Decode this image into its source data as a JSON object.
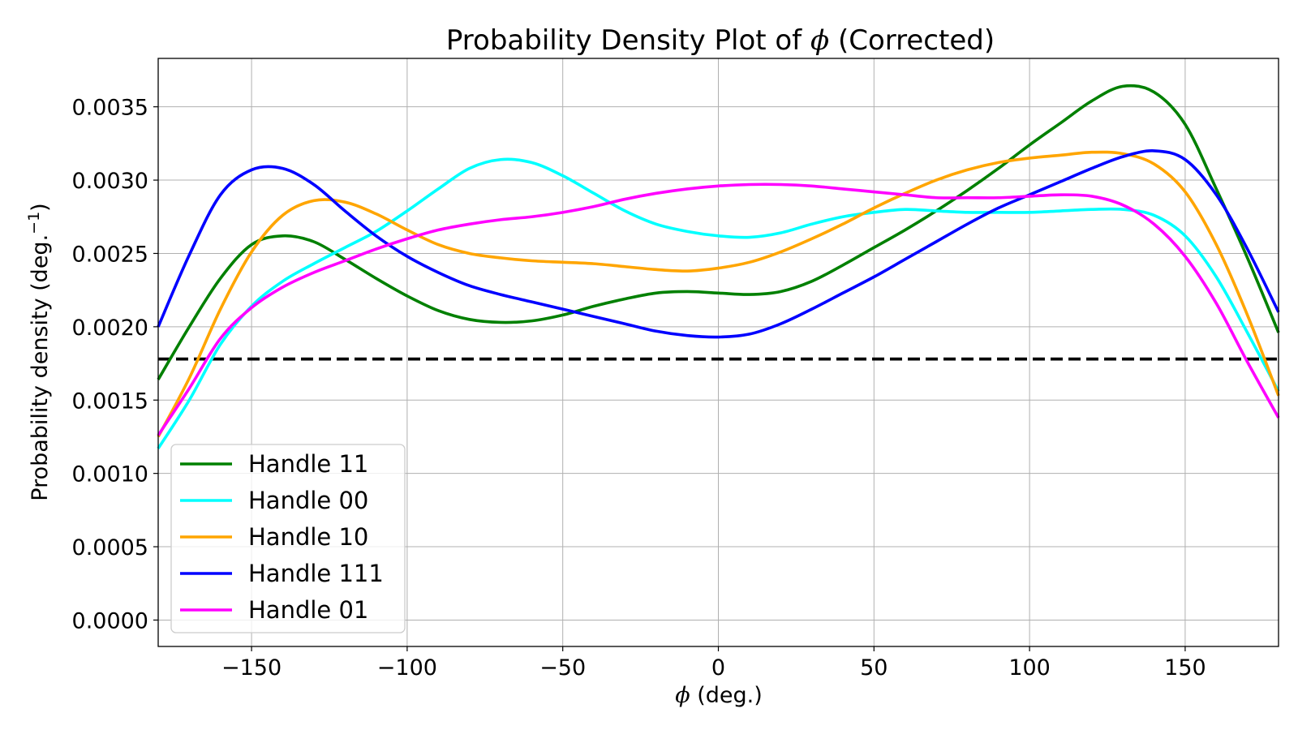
{
  "chart_data": {
    "type": "line",
    "title_prefix": "Probability Density Plot of ",
    "title_symbol": "ϕ",
    "title_suffix": " (Corrected)",
    "xlabel_symbol": "ϕ",
    "xlabel_suffix": " (deg.)",
    "ylabel": "Probability density (deg.",
    "ylabel_sup": "−1",
    "ylabel_close": ")",
    "xlim": [
      -180,
      180
    ],
    "ylim": [
      -0.00018,
      0.00383
    ],
    "xticks": [
      -150,
      -100,
      -50,
      0,
      50,
      100,
      150
    ],
    "xtick_labels": [
      "−150",
      "−100",
      "−50",
      "0",
      "50",
      "100",
      "150"
    ],
    "yticks": [
      0,
      0.0005,
      0.001,
      0.0015,
      0.002,
      0.0025,
      0.003,
      0.0035
    ],
    "ytick_labels": [
      "0.0000",
      "0.0005",
      "0.0010",
      "0.0015",
      "0.0020",
      "0.0025",
      "0.0030",
      "0.0035"
    ],
    "grid": true,
    "legend_position": "lower-left",
    "reference_line": {
      "y": 0.00178,
      "style": "dashed",
      "color": "#000000"
    },
    "series": [
      {
        "name": "Handle 11",
        "color": "#008000",
        "x": [
          -180,
          -170,
          -160,
          -150,
          -140,
          -130,
          -120,
          -110,
          -100,
          -90,
          -80,
          -70,
          -60,
          -50,
          -40,
          -30,
          -20,
          -10,
          0,
          10,
          20,
          30,
          40,
          50,
          60,
          70,
          80,
          90,
          100,
          110,
          120,
          130,
          140,
          150,
          160,
          170,
          180
        ],
        "y": [
          0.00164,
          0.002,
          0.00233,
          0.00256,
          0.00262,
          0.00258,
          0.00246,
          0.00233,
          0.00221,
          0.00211,
          0.00205,
          0.00203,
          0.00204,
          0.00208,
          0.00214,
          0.00219,
          0.00223,
          0.00224,
          0.00223,
          0.00222,
          0.00224,
          0.00231,
          0.00242,
          0.00254,
          0.00266,
          0.00279,
          0.00293,
          0.00308,
          0.00324,
          0.00339,
          0.00354,
          0.00364,
          0.0036,
          0.00338,
          0.00294,
          0.00247,
          0.00196
        ]
      },
      {
        "name": "Handle 00",
        "color": "#00ffff",
        "x": [
          -180,
          -170,
          -160,
          -150,
          -140,
          -130,
          -120,
          -110,
          -100,
          -90,
          -80,
          -70,
          -60,
          -50,
          -40,
          -30,
          -20,
          -10,
          0,
          10,
          20,
          30,
          40,
          50,
          60,
          70,
          80,
          90,
          100,
          110,
          120,
          130,
          140,
          150,
          160,
          170,
          180
        ],
        "y": [
          0.00117,
          0.0015,
          0.00188,
          0.00214,
          0.00231,
          0.00243,
          0.00254,
          0.00265,
          0.00279,
          0.00294,
          0.00308,
          0.00314,
          0.00312,
          0.00303,
          0.00291,
          0.00279,
          0.0027,
          0.00265,
          0.00262,
          0.00261,
          0.00264,
          0.0027,
          0.00275,
          0.00278,
          0.0028,
          0.00279,
          0.00278,
          0.00278,
          0.00278,
          0.00279,
          0.0028,
          0.0028,
          0.00276,
          0.00262,
          0.00234,
          0.00196,
          0.00156
        ]
      },
      {
        "name": "Handle 10",
        "color": "#ffa500",
        "x": [
          -180,
          -170,
          -160,
          -150,
          -140,
          -130,
          -120,
          -110,
          -100,
          -90,
          -80,
          -70,
          -60,
          -50,
          -40,
          -30,
          -20,
          -10,
          0,
          10,
          20,
          30,
          40,
          50,
          60,
          70,
          80,
          90,
          100,
          110,
          120,
          130,
          140,
          150,
          160,
          170,
          180
        ],
        "y": [
          0.00125,
          0.00165,
          0.00212,
          0.00251,
          0.00276,
          0.00286,
          0.00285,
          0.00277,
          0.00266,
          0.00256,
          0.0025,
          0.00247,
          0.00245,
          0.00244,
          0.00243,
          0.00241,
          0.00239,
          0.00238,
          0.0024,
          0.00244,
          0.00251,
          0.0026,
          0.0027,
          0.00281,
          0.00291,
          0.003,
          0.00307,
          0.00312,
          0.00315,
          0.00317,
          0.00319,
          0.00318,
          0.00311,
          0.00292,
          0.00256,
          0.00208,
          0.00153
        ]
      },
      {
        "name": "Handle 111",
        "color": "#0000ff",
        "x": [
          -180,
          -170,
          -160,
          -150,
          -140,
          -130,
          -120,
          -110,
          -100,
          -90,
          -80,
          -70,
          -60,
          -50,
          -40,
          -30,
          -20,
          -10,
          0,
          10,
          20,
          30,
          40,
          50,
          60,
          70,
          80,
          90,
          100,
          110,
          120,
          130,
          140,
          150,
          160,
          170,
          180
        ],
        "y": [
          0.002,
          0.00249,
          0.0029,
          0.00307,
          0.00308,
          0.00297,
          0.00279,
          0.00262,
          0.00248,
          0.00237,
          0.00228,
          0.00222,
          0.00217,
          0.00212,
          0.00207,
          0.00202,
          0.00197,
          0.00194,
          0.00193,
          0.00195,
          0.00202,
          0.00212,
          0.00223,
          0.00234,
          0.00246,
          0.00258,
          0.0027,
          0.00281,
          0.0029,
          0.00299,
          0.00308,
          0.00316,
          0.0032,
          0.00314,
          0.0029,
          0.00253,
          0.0021
        ]
      },
      {
        "name": "Handle 01",
        "color": "#ff00ff",
        "x": [
          -180,
          -170,
          -160,
          -150,
          -140,
          -130,
          -120,
          -110,
          -100,
          -90,
          -80,
          -70,
          -60,
          -50,
          -40,
          -30,
          -20,
          -10,
          0,
          10,
          20,
          30,
          40,
          50,
          60,
          70,
          80,
          90,
          100,
          110,
          120,
          130,
          140,
          150,
          160,
          170,
          180
        ],
        "y": [
          0.00126,
          0.00158,
          0.00192,
          0.00213,
          0.00227,
          0.00237,
          0.00245,
          0.00253,
          0.0026,
          0.00266,
          0.0027,
          0.00273,
          0.00275,
          0.00278,
          0.00282,
          0.00287,
          0.00291,
          0.00294,
          0.00296,
          0.00297,
          0.00297,
          0.00296,
          0.00294,
          0.00292,
          0.0029,
          0.00288,
          0.00288,
          0.00288,
          0.00289,
          0.0029,
          0.00289,
          0.00283,
          0.0027,
          0.00248,
          0.00216,
          0.00176,
          0.00138
        ]
      }
    ]
  }
}
